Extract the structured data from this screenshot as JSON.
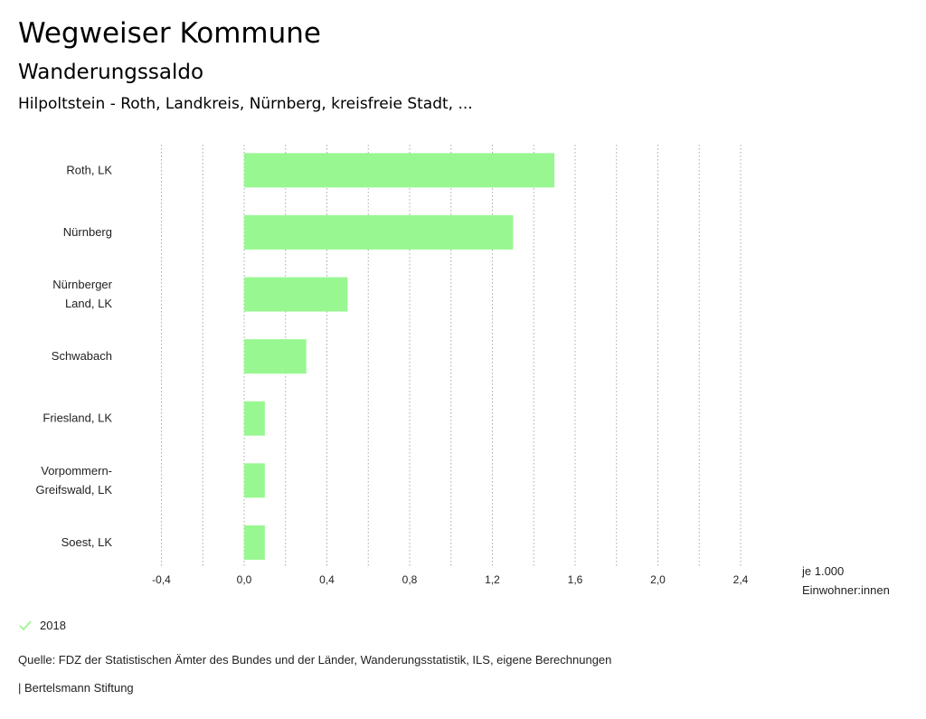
{
  "header": {
    "title": "Wegweiser Kommune",
    "subtitle": "Wanderungssaldo",
    "regions": "Hilpoltstein - Roth, Landkreis, Nürnberg, kreisfreie Stadt, ..."
  },
  "chart_data": {
    "type": "bar",
    "orientation": "horizontal",
    "title": "Wanderungssaldo",
    "categories": [
      [
        "Roth, LK"
      ],
      [
        "Nürnberg"
      ],
      [
        "Nürnberger",
        "Land, LK"
      ],
      [
        "Schwabach"
      ],
      [
        "Friesland, LK"
      ],
      [
        "Vorpommern-",
        "Greifswald, LK"
      ],
      [
        "Soest, LK"
      ]
    ],
    "series": [
      {
        "name": "2018",
        "color": "#98f790",
        "values": [
          1.5,
          1.3,
          0.5,
          0.3,
          0.1,
          0.1,
          0.1
        ]
      }
    ],
    "xlim": [
      -0.6,
      2.6
    ],
    "xticks": [
      -0.4,
      0.0,
      0.4,
      0.8,
      1.2,
      1.6,
      2.0,
      2.4
    ],
    "xtick_labels": [
      "-0,4",
      "0,0",
      "0,4",
      "0,8",
      "1,2",
      "1,6",
      "2,0",
      "2,4"
    ],
    "xgrid_step": 0.2,
    "unit_label_1": "je 1.000",
    "unit_label_2": "Einwohner:innen",
    "grid": true,
    "grid_color": "#aaaaaa"
  },
  "legend": {
    "label": "2018",
    "check_color": "#98f790"
  },
  "footer": {
    "source": "Quelle: FDZ der Statistischen Ämter des Bundes und der Länder, Wanderungsstatistik, ILS, eigene Berechnungen",
    "publisher": "| Bertelsmann Stiftung"
  }
}
